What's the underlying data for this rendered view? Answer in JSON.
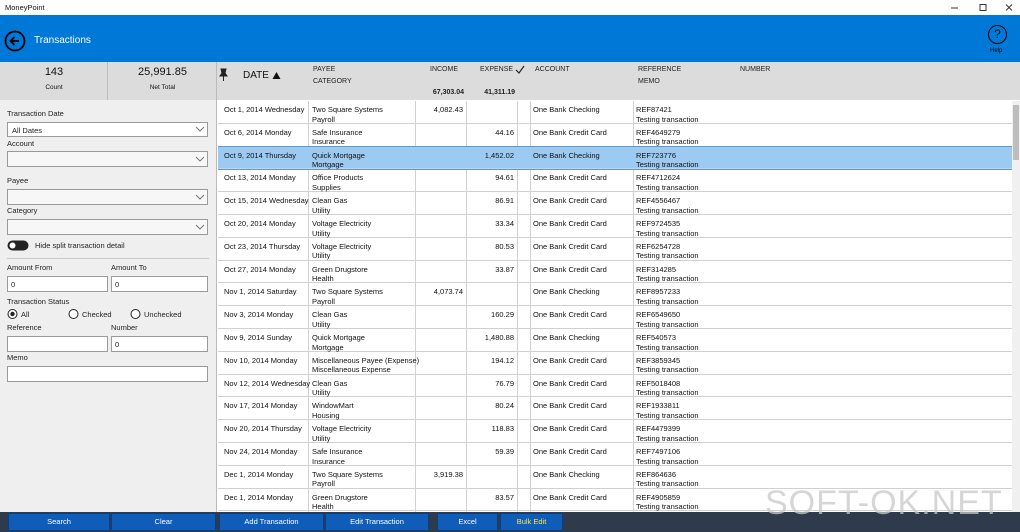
{
  "window": {
    "title": "MoneyPoint"
  },
  "header": {
    "title": "Transactions",
    "help_icon": "?",
    "help_label": "Help"
  },
  "summary": {
    "count": "143",
    "count_label": "Count",
    "net_total": "25,991.85",
    "net_total_label": "Net Total"
  },
  "columns": {
    "date": "DATE",
    "payee": "PAYEE",
    "category": "CATEGORY",
    "income": "INCOME",
    "income_total": "67,303.04",
    "expense": "EXPENSE",
    "expense_total": "41,311.19",
    "account": "ACCOUNT",
    "reference": "REFERENCE",
    "memo": "MEMO",
    "number": "NUMBER"
  },
  "filters": {
    "transaction_date_label": "Transaction Date",
    "transaction_date_value": "All Dates",
    "account_label": "Account",
    "payee_label": "Payee",
    "category_label": "Category",
    "hide_split_label": "Hide split transaction detail",
    "amount_from_label": "Amount From",
    "amount_from_value": "0",
    "amount_to_label": "Amount To",
    "amount_to_value": "0",
    "status_label": "Transaction Status",
    "status_options": [
      "All",
      "Checked",
      "Unchecked"
    ],
    "reference_label": "Reference",
    "number_label": "Number",
    "number_value": "0",
    "memo_label": "Memo"
  },
  "table": {
    "rows": [
      {
        "date": "Oct 1, 2014 Wednesday",
        "payee": "Two Square Systems",
        "category": "Payroll",
        "income": "4,082.43",
        "account": "One Bank Checking",
        "reference": "REF87421",
        "memo": "Testing transaction"
      },
      {
        "date": "Oct 6, 2014 Monday",
        "payee": "Safe Insurance",
        "category": "Insurance",
        "expense": "44.16",
        "account": "One Bank Credit Card",
        "reference": "REF4649279",
        "memo": "Testing transaction"
      },
      {
        "date": "Oct 9, 2014 Thursday",
        "payee": "Quick Mortgage",
        "category": "Mortgage",
        "expense": "1,452.02",
        "account": "One Bank Checking",
        "reference": "REF723776",
        "memo": "Testing transaction",
        "selected": true
      },
      {
        "date": "Oct 13, 2014 Monday",
        "payee": "Office Products",
        "category": "Supplies",
        "expense": "94.61",
        "account": "One Bank Credit Card",
        "reference": "REF4712624",
        "memo": "Testing transaction"
      },
      {
        "date": "Oct 15, 2014 Wednesday",
        "payee": "Clean Gas",
        "category": "Utility",
        "expense": "86.91",
        "account": "One Bank Credit Card",
        "reference": "REF4556467",
        "memo": "Testing transaction"
      },
      {
        "date": "Oct 20, 2014 Monday",
        "payee": "Voltage Electricity",
        "category": "Utility",
        "expense": "33.34",
        "account": "One Bank Credit Card",
        "reference": "REF9724535",
        "memo": "Testing transaction"
      },
      {
        "date": "Oct 23, 2014 Thursday",
        "payee": "Voltage Electricity",
        "category": "Utility",
        "expense": "80.53",
        "account": "One Bank Credit Card",
        "reference": "REF6254728",
        "memo": "Testing transaction"
      },
      {
        "date": "Oct 27, 2014 Monday",
        "payee": "Green Drugstore",
        "category": "Health",
        "expense": "33.87",
        "account": "One Bank Credit Card",
        "reference": "REF314285",
        "memo": "Testing transaction"
      },
      {
        "date": "Nov 1, 2014 Saturday",
        "payee": "Two Square Systems",
        "category": "Payroll",
        "income": "4,073.74",
        "account": "One Bank Checking",
        "reference": "REF8957233",
        "memo": "Testing transaction"
      },
      {
        "date": "Nov 3, 2014 Monday",
        "payee": "Clean Gas",
        "category": "Utility",
        "expense": "160.29",
        "account": "One Bank Credit Card",
        "reference": "REF6549650",
        "memo": "Testing transaction"
      },
      {
        "date": "Nov 9, 2014 Sunday",
        "payee": "Quick Mortgage",
        "category": "Mortgage",
        "expense": "1,480.88",
        "account": "One Bank Checking",
        "reference": "REF540573",
        "memo": "Testing transaction"
      },
      {
        "date": "Nov 10, 2014 Monday",
        "payee": "Miscellaneous Payee (Expense)",
        "category": "Miscellaneous Expense",
        "expense": "194.12",
        "account": "One Bank Credit Card",
        "reference": "REF3859345",
        "memo": "Testing transaction"
      },
      {
        "date": "Nov 12, 2014 Wednesday",
        "payee": "Clean Gas",
        "category": "Utility",
        "expense": "76.79",
        "account": "One Bank Credit Card",
        "reference": "REF5018408",
        "memo": "Testing transaction"
      },
      {
        "date": "Nov 17, 2014 Monday",
        "payee": "WindowMart",
        "category": "Housing",
        "expense": "80.24",
        "account": "One Bank Credit Card",
        "reference": "REF1933811",
        "memo": "Testing transaction"
      },
      {
        "date": "Nov 20, 2014 Thursday",
        "payee": "Voltage Electricity",
        "category": "Utility",
        "expense": "118.83",
        "account": "One Bank Credit Card",
        "reference": "REF4479399",
        "memo": "Testing transaction"
      },
      {
        "date": "Nov 24, 2014 Monday",
        "payee": "Safe Insurance",
        "category": "Insurance",
        "expense": "59.39",
        "account": "One Bank Credit Card",
        "reference": "REF7497106",
        "memo": "Testing transaction"
      },
      {
        "date": "Dec 1, 2014 Monday",
        "payee": "Two Square Systems",
        "category": "Payroll",
        "income": "3,919.38",
        "account": "One Bank Checking",
        "reference": "REF864636",
        "memo": "Testing transaction"
      },
      {
        "date": "Dec 1, 2014 Monday",
        "payee": "Green Drugstore",
        "category": "Health",
        "expense": "83.57",
        "account": "One Bank Credit Card",
        "reference": "REF4905859",
        "memo": "Testing transaction"
      }
    ]
  },
  "buttons": [
    "Search",
    "Clear",
    "Add Transaction",
    "Edit Transaction",
    "Excel",
    "Bulk Edit"
  ],
  "watermark": "SOFT-OK.NET"
}
